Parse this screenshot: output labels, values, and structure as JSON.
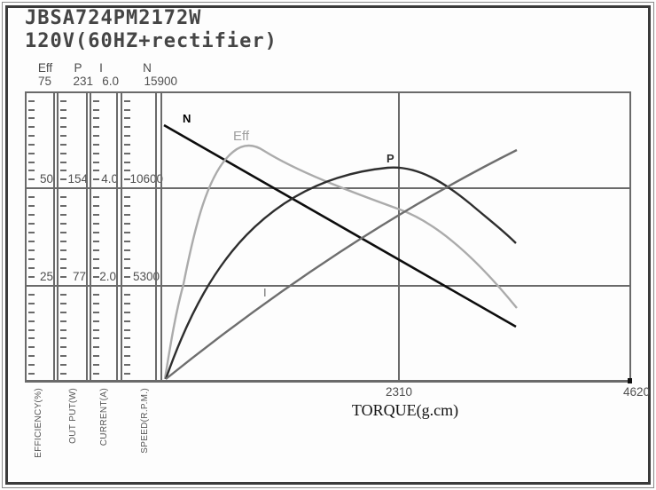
{
  "title": {
    "line1": "JBSA724PM2172W",
    "line2": "120V(60HZ+rectifier)"
  },
  "axes": {
    "columns": [
      {
        "header": "Eff",
        "values": [
          "75",
          "50",
          "25"
        ],
        "unit": "EFFICIENCY(%)"
      },
      {
        "header": "P",
        "values": [
          "231",
          "154",
          "77"
        ],
        "unit": "OUT PUT(W)"
      },
      {
        "header": "I",
        "values": [
          "6.0",
          "4.0",
          "2.0"
        ],
        "unit": "CURRENT(A)"
      },
      {
        "header": "N",
        "values": [
          "15900",
          "10600",
          "5300"
        ],
        "unit": "SPEED(R.P.M.)"
      }
    ]
  },
  "x_axis": {
    "label": "TORQUE(g.cm)",
    "ticks": [
      "2310",
      "4620"
    ]
  },
  "curves": {
    "n": {
      "label": "N"
    },
    "eff": {
      "label": "Eff"
    },
    "p": {
      "label": "P"
    },
    "i": {
      "label": "I"
    }
  },
  "colors": {
    "grid": "#6a6a6a",
    "speed_line": "#0d0d0d",
    "efficiency_line": "#ababab",
    "power_line": "#2e2e2e",
    "current_line": "#6e6e6e"
  },
  "chart_data": {
    "type": "line",
    "title": "JBSA724PM2172W 120V(60HZ+rectifier) motor performance curves",
    "xlabel": "TORQUE(g.cm)",
    "x_range": [
      0,
      4620
    ],
    "x_ticks": [
      2310,
      4620
    ],
    "grid": true,
    "legend_position": "inline-curve-labels",
    "y_axes": [
      {
        "id": "speed",
        "label": "SPEED(R.P.M.)",
        "ticks": [
          5300,
          10600,
          15900
        ],
        "range": [
          0,
          15900
        ]
      },
      {
        "id": "efficiency",
        "label": "EFFICIENCY(%)",
        "ticks": [
          25,
          50,
          75
        ],
        "range": [
          0,
          75
        ]
      },
      {
        "id": "output_power",
        "label": "OUT PUT(W)",
        "ticks": [
          77,
          154,
          231
        ],
        "range": [
          0,
          231
        ]
      },
      {
        "id": "current",
        "label": "CURRENT(A)",
        "ticks": [
          2.0,
          4.0,
          6.0
        ],
        "range": [
          0,
          6.0
        ]
      }
    ],
    "series": [
      {
        "name": "N",
        "axis": "speed",
        "color": "#0d0d0d",
        "points": [
          [
            30,
            14050
          ],
          [
            3490,
            3070
          ]
        ]
      },
      {
        "name": "Eff",
        "axis": "efficiency",
        "color": "#ababab",
        "points": [
          [
            30,
            0
          ],
          [
            200,
            30
          ],
          [
            450,
            55
          ],
          [
            710,
            60.5
          ],
          [
            1550,
            52
          ],
          [
            2330,
            45
          ],
          [
            3000,
            32
          ],
          [
            3500,
            19
          ]
        ]
      },
      {
        "name": "P",
        "axis": "output_power",
        "color": "#2e2e2e",
        "points": [
          [
            30,
            0
          ],
          [
            610,
            71
          ],
          [
            1730,
            162
          ],
          [
            2290,
            171
          ],
          [
            3030,
            142
          ],
          [
            3490,
            110
          ]
        ]
      },
      {
        "name": "I",
        "axis": "current",
        "color": "#6e6e6e",
        "points": [
          [
            30,
            0.1
          ],
          [
            1220,
            2.0
          ],
          [
            2310,
            3.45
          ],
          [
            3500,
            4.8
          ]
        ]
      }
    ]
  }
}
